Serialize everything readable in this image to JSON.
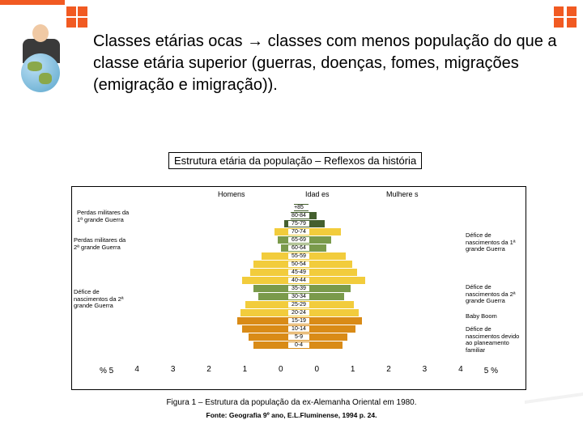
{
  "main_text": "Classes  etárias ocas → classes com menos população do que a classe etária superior (guerras, doenças, fomes, migrações (emigração e imigração)).",
  "caption_box": "Estrutura etária da população – Reflexos da história",
  "titles": {
    "homens": "Homens",
    "idades": "Idad es",
    "mulheres": "Mulhere s"
  },
  "x_left_label": "% 5",
  "x_right_label": "5 %",
  "x_ticks": [
    "4",
    "3",
    "2",
    "1",
    "0",
    "0",
    "1",
    "2",
    "3",
    "4"
  ],
  "colors": {
    "top": "#445f2e",
    "mid": "#f2cc3c",
    "low": "#d98b17",
    "hollow": "#7a9a4b"
  },
  "rows": [
    {
      "lab": "+85",
      "l": 6,
      "r": 12,
      "c": "top"
    },
    {
      "lab": "80-84",
      "l": 10,
      "r": 22,
      "c": "top"
    },
    {
      "lab": "75-79",
      "l": 18,
      "r": 32,
      "c": "top"
    },
    {
      "lab": "70-74",
      "l": 30,
      "r": 52,
      "c": "mid"
    },
    {
      "lab": "65-69",
      "l": 26,
      "r": 40,
      "c": "hollow"
    },
    {
      "lab": "60-64",
      "l": 22,
      "r": 34,
      "c": "hollow"
    },
    {
      "lab": "55-59",
      "l": 46,
      "r": 58,
      "c": "mid"
    },
    {
      "lab": "50-54",
      "l": 56,
      "r": 66,
      "c": "mid"
    },
    {
      "lab": "45-49",
      "l": 60,
      "r": 72,
      "c": "mid"
    },
    {
      "lab": "40-44",
      "l": 70,
      "r": 82,
      "c": "mid"
    },
    {
      "lab": "35-39",
      "l": 56,
      "r": 64,
      "c": "hollow"
    },
    {
      "lab": "30-34",
      "l": 50,
      "r": 56,
      "c": "hollow"
    },
    {
      "lab": "25-29",
      "l": 66,
      "r": 68,
      "c": "mid"
    },
    {
      "lab": "20-24",
      "l": 72,
      "r": 74,
      "c": "mid"
    },
    {
      "lab": "15-19",
      "l": 76,
      "r": 78,
      "c": "low"
    },
    {
      "lab": "10-14",
      "l": 70,
      "r": 70,
      "c": "low"
    },
    {
      "lab": "5-9",
      "l": 62,
      "r": 60,
      "c": "low"
    },
    {
      "lab": "0-4",
      "l": 56,
      "r": 54,
      "c": "low"
    }
  ],
  "notes": {
    "n1": "Perdas militares da 1ª grande Guerra",
    "n2": "Perdas militares da 2ª grande Guerra",
    "n3": "Défice de nascimentos da 2ª grande Guerra",
    "n4": "Défice de nascimentos da 1ª grande Guerra",
    "n5": "Défice de nascimentos da 2ª grande Guerra",
    "n6": "Baby Boom",
    "n7": "Défice de nascimentos devido ao planeamento familiar"
  },
  "figure_caption": "Figura 1 – Estrutura da população da ex-Alemanha Oriental em 1980.",
  "figure_source": "Fonte: Geografia 9º ano, E.L.Fluminense, 1994 p. 24."
}
